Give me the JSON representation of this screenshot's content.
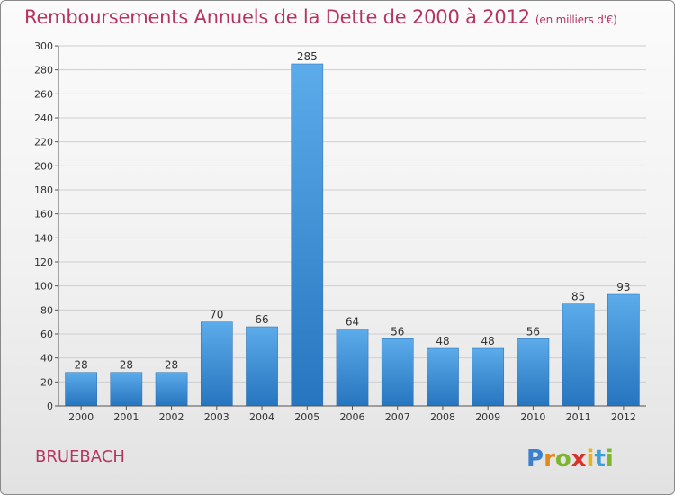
{
  "chart_data": {
    "type": "bar",
    "title": "Remboursements Annuels de la Dette de 2000 à 2012",
    "subtitle": "(en milliers d'€)",
    "categories": [
      "2000",
      "2001",
      "2002",
      "2003",
      "2004",
      "2005",
      "2006",
      "2007",
      "2008",
      "2009",
      "2010",
      "2011",
      "2012"
    ],
    "values": [
      28,
      28,
      28,
      70,
      66,
      285,
      64,
      56,
      48,
      48,
      56,
      85,
      93
    ],
    "ylim": [
      0,
      300
    ],
    "yticks": [
      0,
      20,
      40,
      60,
      80,
      100,
      120,
      140,
      160,
      180,
      200,
      220,
      240,
      260,
      280,
      300
    ],
    "grid": "horizontal",
    "bar_color": "#3f92d8"
  },
  "footer": {
    "commune": "BRUEBACH",
    "logo_text": "Proxiti"
  }
}
